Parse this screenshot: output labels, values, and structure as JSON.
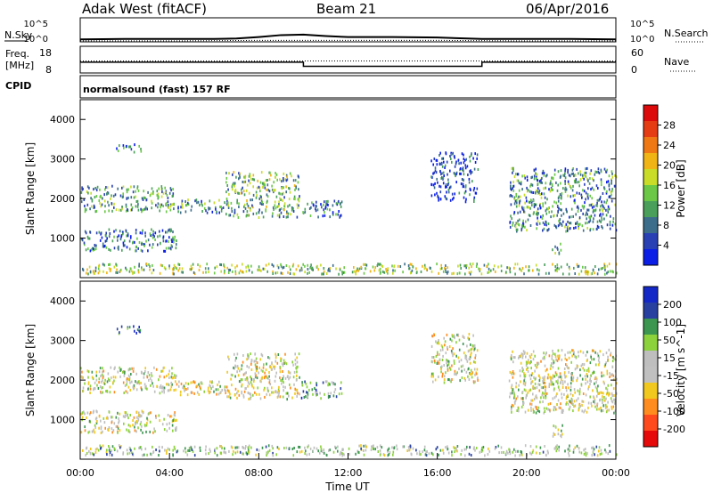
{
  "header": {
    "station": "Adak West (fitACF)",
    "beam": "Beam 21",
    "date": "06/Apr/2016"
  },
  "strip": {
    "nsky_label": "N.Sky",
    "nsky_tick_top": "10^5",
    "nsky_tick_bottom": "10^0",
    "nsearch_label": "N.Search",
    "freq_label": "Freq.",
    "freq_unit": "[MHz]",
    "freq_ticks": [
      "18",
      "8"
    ],
    "nave_label": "Nave",
    "nave_ticks": [
      "60",
      "0"
    ],
    "cpid_label": "CPID",
    "cpid_text": "normalsound (fast) 157 RF"
  },
  "colors": {
    "power_scale": [
      "#0a1ee6",
      "#2840b4",
      "#3c6e8c",
      "#4aa05a",
      "#6ac846",
      "#c8dc28",
      "#f0b414",
      "#f07814",
      "#e63c14",
      "#dc0a0a"
    ],
    "velocity_scale": [
      "#e60a0a",
      "#ff4a1e",
      "#ff8c1e",
      "#f0c81e",
      "#c0c0c0",
      "#bebebe",
      "#8cd23c",
      "#3c9650",
      "#2840a0",
      "#1428c8"
    ]
  },
  "chart_data": [
    {
      "type": "line",
      "title": "N.Sky / N.Search",
      "xlabel": "Time UT",
      "x_ticks": [
        "00:00",
        "04:00",
        "08:00",
        "12:00",
        "16:00",
        "20:00",
        "00:00"
      ],
      "x_range_hours": [
        0,
        24
      ],
      "series": [
        {
          "name": "N.Sky",
          "style": "solid",
          "x_hours": [
            0,
            2,
            4,
            6,
            7,
            8,
            9,
            10,
            11,
            12,
            14,
            16,
            18,
            20,
            22,
            24
          ],
          "log10_values": [
            0.5,
            0.6,
            0.6,
            0.6,
            0.7,
            1.0,
            1.4,
            1.5,
            1.2,
            1.0,
            1.0,
            0.9,
            0.6,
            0.6,
            0.6,
            0.5
          ]
        },
        {
          "name": "N.Search",
          "style": "dotted",
          "x_hours": [
            0,
            4,
            8,
            12,
            16,
            20,
            24
          ],
          "log10_values": [
            0.2,
            0.2,
            0.3,
            0.3,
            0.3,
            0.2,
            0.2
          ]
        }
      ],
      "y_ticks_left": [
        "10^5",
        "10^0"
      ],
      "y_ticks_right": [
        "10^5",
        "10^0"
      ]
    },
    {
      "type": "line",
      "title": "Freq. / Nave",
      "xlabel": "Time UT",
      "series": [
        {
          "name": "Freq.",
          "style": "solid",
          "x_hours": [
            0,
            10,
            10,
            18,
            18,
            24
          ],
          "values": [
            12.5,
            12.5,
            10.8,
            10.8,
            12.5,
            12.5
          ]
        },
        {
          "name": "Nave",
          "style": "dotted",
          "x_hours": [
            0,
            24
          ],
          "values": [
            30,
            30
          ]
        }
      ],
      "y_ticks_left": [
        18,
        8
      ],
      "y_ticks_right": [
        60,
        0
      ]
    },
    {
      "type": "heatmap",
      "title": "Power",
      "xlabel": "Time UT",
      "ylabel": "Slant Range [km]",
      "y_ticks": [
        1000,
        2000,
        3000,
        4000
      ],
      "ylim": [
        0,
        4500
      ],
      "colorbar_label": "Power [dB]",
      "colorbar_ticks": [
        4,
        8,
        12,
        16,
        20,
        24,
        28
      ],
      "colorbar_range": [
        0,
        30
      ],
      "x_ticks": [
        "00:00",
        "04:00",
        "08:00",
        "12:00",
        "16:00",
        "20:00",
        "00:00"
      ],
      "scatter_regions": [
        {
          "t0": 0,
          "t1": 4.3,
          "r0": 1700,
          "r1": 2350,
          "level": 0.35
        },
        {
          "t0": 4.3,
          "t1": 6.5,
          "r0": 1650,
          "r1": 2000,
          "level": 0.3
        },
        {
          "t0": 6.5,
          "t1": 9.8,
          "r0": 1550,
          "r1": 2700,
          "level": 0.4
        },
        {
          "t0": 9.8,
          "t1": 11.7,
          "r0": 1550,
          "r1": 2000,
          "level": 0.2
        },
        {
          "t0": 0,
          "t1": 4.3,
          "r0": 700,
          "r1": 1250,
          "level": 0.25
        },
        {
          "t0": 1.6,
          "t1": 2.7,
          "r0": 3200,
          "r1": 3400,
          "level": 0.2
        },
        {
          "t0": 15.7,
          "t1": 17.8,
          "r0": 1950,
          "r1": 3200,
          "level": 0.15
        },
        {
          "t0": 19.2,
          "t1": 24,
          "r0": 1200,
          "r1": 2800,
          "level": 0.3
        },
        {
          "t0": 21.1,
          "t1": 21.6,
          "r0": 600,
          "r1": 900,
          "level": 0.3
        },
        {
          "t0": 0,
          "t1": 24,
          "r0": 120,
          "r1": 380,
          "level": 0.45
        }
      ]
    },
    {
      "type": "heatmap",
      "title": "Velocity",
      "xlabel": "Time UT",
      "ylabel": "Slant Range [km]",
      "y_ticks": [
        1000,
        2000,
        3000,
        4000
      ],
      "ylim": [
        0,
        4500
      ],
      "colorbar_label": "Velocity [m s^-1]",
      "colorbar_ticks": [
        200,
        100,
        50,
        15,
        -15,
        -50,
        -100,
        -200
      ],
      "x_ticks": [
        "00:00",
        "04:00",
        "08:00",
        "12:00",
        "16:00",
        "20:00",
        "00:00"
      ],
      "scatter_regions": [
        {
          "t0": 0,
          "t1": 4.3,
          "r0": 1700,
          "r1": 2350,
          "level": 0.5
        },
        {
          "t0": 4.3,
          "t1": 6.5,
          "r0": 1650,
          "r1": 2000,
          "level": 0.5
        },
        {
          "t0": 6.5,
          "t1": 9.8,
          "r0": 1550,
          "r1": 2700,
          "level": 0.5
        },
        {
          "t0": 9.8,
          "t1": 11.7,
          "r0": 1550,
          "r1": 2000,
          "level": 0.7
        },
        {
          "t0": 0,
          "t1": 4.3,
          "r0": 700,
          "r1": 1250,
          "level": 0.5
        },
        {
          "t0": 1.6,
          "t1": 2.7,
          "r0": 3200,
          "r1": 3400,
          "level": 0.85
        },
        {
          "t0": 15.7,
          "t1": 17.8,
          "r0": 1950,
          "r1": 3200,
          "level": 0.5
        },
        {
          "t0": 19.2,
          "t1": 24,
          "r0": 1200,
          "r1": 2800,
          "level": 0.5
        },
        {
          "t0": 21.1,
          "t1": 21.6,
          "r0": 600,
          "r1": 900,
          "level": 0.5
        },
        {
          "t0": 0,
          "t1": 24,
          "r0": 120,
          "r1": 380,
          "level": 0.6
        }
      ]
    }
  ]
}
